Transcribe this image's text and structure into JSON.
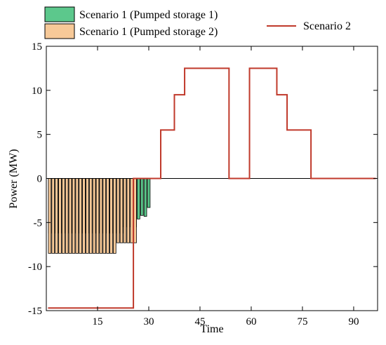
{
  "chart_data": {
    "type": "bar",
    "xlabel": "Time",
    "ylabel": "Power (MW)",
    "xlim": [
      0,
      97
    ],
    "ylim": [
      -15,
      15
    ],
    "xticks": [
      15,
      30,
      45,
      60,
      75,
      90
    ],
    "yticks": [
      -15,
      -10,
      -5,
      0,
      5,
      10,
      15
    ],
    "legend_position": "top",
    "grid": false,
    "x": [
      1,
      2,
      3,
      4,
      5,
      6,
      7,
      8,
      9,
      10,
      11,
      12,
      13,
      14,
      15,
      16,
      17,
      18,
      19,
      20,
      21,
      22,
      23,
      24,
      25,
      26,
      27,
      28,
      29,
      30,
      31,
      32,
      33,
      34,
      35,
      36,
      37,
      38,
      39,
      40,
      41,
      42,
      43,
      44,
      45,
      46,
      47,
      48,
      49,
      50,
      51,
      52,
      53,
      54,
      55,
      56,
      57,
      58,
      59,
      60,
      61,
      62,
      63,
      64,
      65,
      66,
      67,
      68,
      69,
      70,
      71,
      72,
      73,
      74,
      75,
      76,
      77,
      78,
      79,
      80,
      81,
      82,
      83,
      84,
      85,
      86,
      87,
      88,
      89,
      90,
      91,
      92,
      93,
      94,
      95,
      96
    ],
    "series": [
      {
        "name": "Scenario 1 (Pumped storage 1)",
        "type": "bar",
        "color": "#5cc88c",
        "values": [
          -6.2,
          -6.2,
          -6.2,
          -6.2,
          -6.2,
          -6.2,
          -6.2,
          -6.2,
          -6.2,
          -6.2,
          -6.2,
          -6.2,
          -6.2,
          -6.2,
          -6.2,
          -6.2,
          -6.2,
          -6.2,
          -6.2,
          -6.2,
          -6.2,
          -6.2,
          -5.5,
          -5.5,
          -5.5,
          -5.5,
          -4.6,
          -4.2,
          -4.3,
          -3.3,
          0,
          0,
          0,
          0,
          0,
          0,
          0,
          0,
          0,
          0,
          0,
          0,
          0,
          0,
          0,
          0,
          0,
          0,
          0,
          0,
          0,
          0,
          0,
          0,
          0,
          0,
          0,
          0,
          0,
          0,
          0,
          0,
          0,
          0,
          0,
          0,
          0,
          0,
          0,
          0,
          0,
          0,
          0,
          0,
          0,
          0,
          0,
          0,
          0,
          0,
          0,
          0,
          0,
          0,
          0,
          0,
          0,
          0,
          0,
          0,
          0,
          0,
          0,
          0,
          0,
          0
        ]
      },
      {
        "name": "Scenario 1 (Pumped storage 2)",
        "type": "bar",
        "color": "#f7c998",
        "values": [
          -8.5,
          -8.5,
          -8.5,
          -8.5,
          -8.5,
          -8.5,
          -8.5,
          -8.5,
          -8.5,
          -8.5,
          -8.5,
          -8.5,
          -8.5,
          -8.5,
          -8.5,
          -8.5,
          -8.5,
          -8.5,
          -8.5,
          -8.5,
          -7.3,
          -7.3,
          -7.3,
          -7.3,
          -7.3,
          -7.3,
          0,
          0,
          0,
          0,
          0,
          0,
          0,
          0,
          0,
          0,
          0,
          0,
          0,
          0,
          0,
          0,
          0,
          0,
          0,
          0,
          0,
          0,
          0,
          0,
          0,
          0,
          0,
          0,
          0,
          0,
          0,
          0,
          0,
          0,
          0,
          0,
          0,
          0,
          0,
          0,
          0,
          0,
          0,
          0,
          0,
          0,
          0,
          0,
          0,
          0,
          0,
          0,
          0,
          0,
          0,
          0,
          0,
          0,
          0,
          0,
          0,
          0,
          0,
          0,
          0,
          0,
          0,
          0,
          0,
          0
        ]
      },
      {
        "name": "Scenario 2",
        "type": "line",
        "color": "#c0392b",
        "values": [
          -14.7,
          -14.7,
          -14.7,
          -14.7,
          -14.7,
          -14.7,
          -14.7,
          -14.7,
          -14.7,
          -14.7,
          -14.7,
          -14.7,
          -14.7,
          -14.7,
          -14.7,
          -14.7,
          -14.7,
          -14.7,
          -14.7,
          -14.7,
          -14.7,
          -14.7,
          -14.7,
          -14.7,
          -14.7,
          0,
          0,
          0,
          0,
          0,
          0,
          0,
          0,
          5.5,
          5.5,
          5.5,
          5.5,
          9.5,
          9.5,
          9.5,
          12.5,
          12.5,
          12.5,
          12.5,
          12.5,
          12.5,
          12.5,
          12.5,
          12.5,
          12.5,
          12.5,
          12.5,
          12.5,
          0,
          0,
          0,
          0,
          0,
          0,
          12.5,
          12.5,
          12.5,
          12.5,
          12.5,
          12.5,
          12.5,
          12.5,
          9.5,
          9.5,
          9.5,
          5.5,
          5.5,
          5.5,
          5.5,
          5.5,
          5.5,
          5.5,
          0,
          0,
          0,
          0,
          0,
          0,
          0,
          0,
          0,
          0,
          0,
          0,
          0,
          0,
          0,
          0,
          0,
          0,
          0
        ]
      }
    ]
  }
}
